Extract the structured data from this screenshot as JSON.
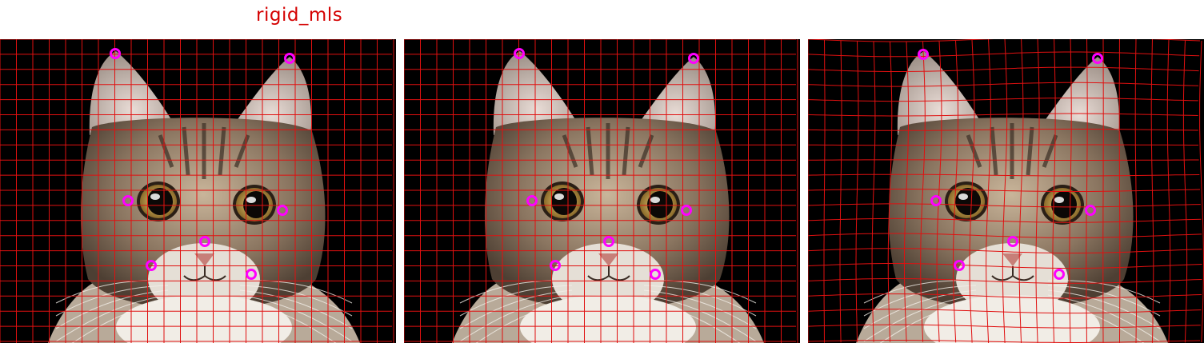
{
  "title": "rigid_mls",
  "colors": {
    "background": "#ffffff",
    "title": "#d40000",
    "grid": "#e01010",
    "control_point": "#ff00ff",
    "canvas": "#000000"
  },
  "panels": [
    {
      "name": "original",
      "grid": "straight",
      "control_points": [
        [
          144,
          18
        ],
        [
          362,
          24
        ],
        [
          160,
          202
        ],
        [
          353,
          214
        ],
        [
          256,
          253
        ],
        [
          189,
          283
        ],
        [
          314,
          294
        ]
      ]
    },
    {
      "name": "deformed-1",
      "grid": "straight",
      "control_points": [
        [
          144,
          18
        ],
        [
          362,
          24
        ],
        [
          160,
          202
        ],
        [
          353,
          214
        ],
        [
          256,
          253
        ],
        [
          189,
          283
        ],
        [
          314,
          294
        ]
      ]
    },
    {
      "name": "deformed-2",
      "grid": "warped",
      "control_points": [
        [
          144,
          19
        ],
        [
          362,
          24
        ],
        [
          160,
          202
        ],
        [
          353,
          214
        ],
        [
          256,
          253
        ],
        [
          189,
          283
        ],
        [
          314,
          294
        ]
      ]
    }
  ]
}
